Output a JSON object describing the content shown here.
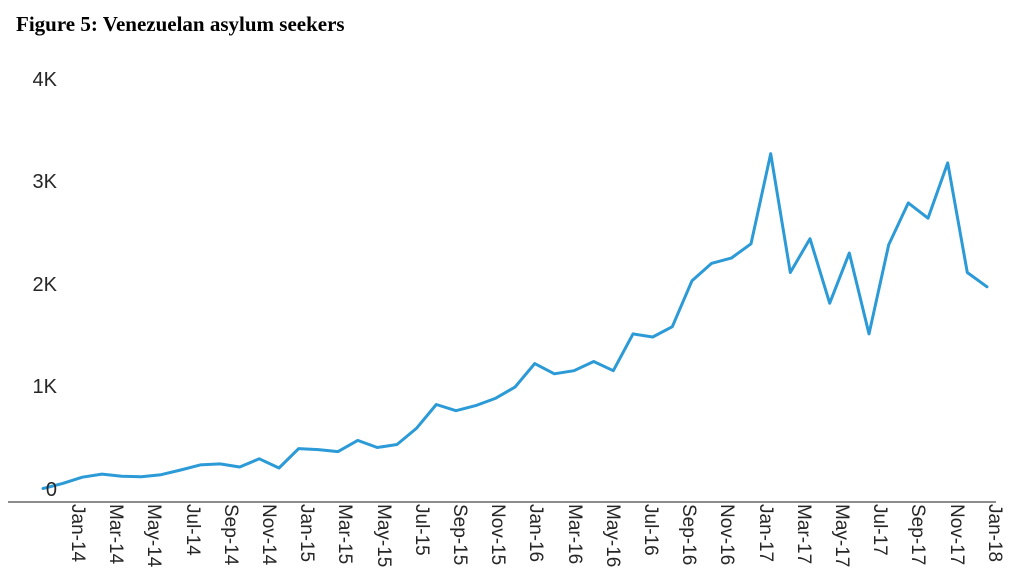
{
  "title": "Figure 5: Venezuelan asylum seekers",
  "chart_data": {
    "type": "line",
    "title": "Figure 5: Venezuelan asylum seekers",
    "xlabel": "",
    "ylabel": "",
    "ylim": [
      0,
      4000
    ],
    "grid": "off",
    "legend": "none",
    "line_color": "#2B9AD6",
    "axis_color": "#8C8C8C",
    "y_tick_labels": [
      "0",
      "1K",
      "2K",
      "3K",
      "4K"
    ],
    "x_tick_labels_clipped": [
      "Jan-14",
      "Mar-14",
      "May-14",
      "Jul-14",
      "Sep-14",
      "Nov-14",
      "Jan-15",
      "Mar-15",
      "May-15",
      "Jul-15",
      "Sep-15",
      "Nov-15",
      "Jan-16",
      "Mar-16",
      "May-16",
      "Jul-16",
      "Sep-16",
      "Nov-16",
      "Jan-17",
      "Mar-17",
      "May-17",
      "Jul-17",
      "Sep-17",
      "Nov-17",
      "Jan-18"
    ],
    "x": [
      "Jan-14",
      "Feb-14",
      "Mar-14",
      "Apr-14",
      "May-14",
      "Jun-14",
      "Jul-14",
      "Aug-14",
      "Sep-14",
      "Oct-14",
      "Nov-14",
      "Dec-14",
      "Jan-15",
      "Feb-15",
      "Mar-15",
      "Apr-15",
      "May-15",
      "Jun-15",
      "Jul-15",
      "Aug-15",
      "Sep-15",
      "Oct-15",
      "Nov-15",
      "Dec-15",
      "Jan-16",
      "Feb-16",
      "Mar-16",
      "Apr-16",
      "May-16",
      "Jun-16",
      "Jul-16",
      "Aug-16",
      "Sep-16",
      "Oct-16",
      "Nov-16",
      "Dec-16",
      "Jan-17",
      "Feb-17",
      "Mar-17",
      "Apr-17",
      "May-17",
      "Jun-17",
      "Jul-17",
      "Aug-17",
      "Sep-17",
      "Oct-17",
      "Nov-17",
      "Dec-17",
      "Jan-18"
    ],
    "values": [
      10,
      60,
      120,
      150,
      130,
      125,
      145,
      190,
      240,
      250,
      220,
      300,
      210,
      400,
      390,
      370,
      480,
      410,
      440,
      600,
      830,
      770,
      820,
      890,
      1000,
      1230,
      1130,
      1160,
      1250,
      1160,
      1520,
      1490,
      1590,
      2040,
      2210,
      2260,
      2400,
      3280,
      2120,
      2450,
      1820,
      2310,
      1520,
      2390,
      2800,
      2650,
      3190,
      2120,
      1980
    ]
  }
}
